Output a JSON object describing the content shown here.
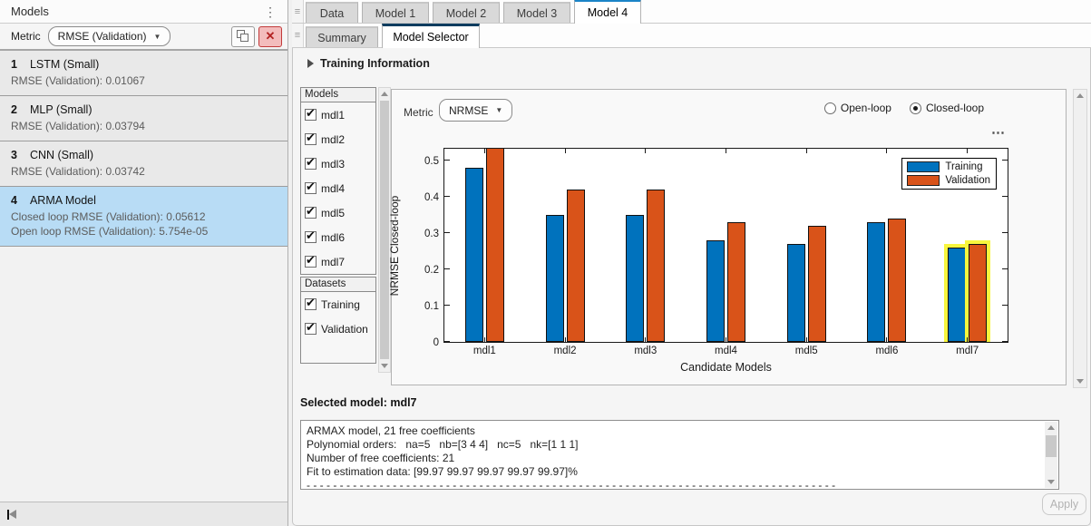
{
  "left_panel": {
    "title": "Models",
    "metric_label": "Metric",
    "metric_value": "RMSE (Validation)",
    "models": [
      {
        "index": "1",
        "name": "LSTM (Small)",
        "lines": [
          "RMSE (Validation): 0.01067"
        ],
        "selected": false
      },
      {
        "index": "2",
        "name": "MLP (Small)",
        "lines": [
          "RMSE (Validation): 0.03794"
        ],
        "selected": false
      },
      {
        "index": "3",
        "name": "CNN (Small)",
        "lines": [
          "RMSE (Validation): 0.03742"
        ],
        "selected": false
      },
      {
        "index": "4",
        "name": "ARMA Model",
        "lines": [
          "Closed loop RMSE (Validation): 0.05612",
          "Open loop RMSE (Validation): 5.754e-05"
        ],
        "selected": true
      }
    ]
  },
  "tabs": {
    "doc_tabs": [
      "Data",
      "Model 1",
      "Model 2",
      "Model 3",
      "Model 4"
    ],
    "active_doc_tab": "Model 4",
    "sub_tabs": [
      "Summary",
      "Model Selector"
    ],
    "active_sub_tab": "Model Selector"
  },
  "model_selector": {
    "training_information_label": "Training Information",
    "models_header": "Models",
    "model_checkboxes": [
      {
        "label": "mdl1",
        "checked": true
      },
      {
        "label": "mdl2",
        "checked": true
      },
      {
        "label": "mdl3",
        "checked": true
      },
      {
        "label": "mdl4",
        "checked": true
      },
      {
        "label": "mdl5",
        "checked": true
      },
      {
        "label": "mdl6",
        "checked": true
      },
      {
        "label": "mdl7",
        "checked": true
      }
    ],
    "datasets_header": "Datasets",
    "dataset_checkboxes": [
      {
        "label": "Training",
        "checked": true
      },
      {
        "label": "Validation",
        "checked": true
      }
    ],
    "metric_label": "Metric",
    "metric_value": "NRMSE",
    "radio_options": [
      {
        "label": "Open-loop",
        "selected": false
      },
      {
        "label": "Closed-loop",
        "selected": true
      }
    ],
    "selected_model_text": "Selected model: mdl7",
    "details_lines": [
      "ARMAX model, 21 free coefficients",
      "Polynomial orders:   na=5   nb=[3 4 4]   nc=5   nk=[1 1 1]",
      "Number of free coefficients: 21",
      "Fit to estimation data: [99.97 99.97 99.97 99.97 99.97]%",
      "- - - - - - - - - - - - - - - - - - - - - - - - - - - - - - - - - - - - - - - - - - - - - - - - - - - - - - - - - - - - - - - - - - - - - - - - - - - - - - - -"
    ],
    "apply_label": "Apply"
  },
  "chart_data": {
    "type": "bar",
    "categories": [
      "mdl1",
      "mdl2",
      "mdl3",
      "mdl4",
      "mdl5",
      "mdl6",
      "mdl7"
    ],
    "series": [
      {
        "name": "Training",
        "color": "#0072BD",
        "values": [
          0.48,
          0.35,
          0.35,
          0.28,
          0.27,
          0.33,
          0.26
        ]
      },
      {
        "name": "Validation",
        "color": "#D95319",
        "values": [
          0.55,
          0.42,
          0.42,
          0.33,
          0.32,
          0.34,
          0.27
        ]
      }
    ],
    "title": "",
    "xlabel": "Candidate Models",
    "ylabel": "NRMSE Closed-loop",
    "ylim": [
      0,
      0.533
    ],
    "ytick_values": [
      0,
      0.1,
      0.2,
      0.3,
      0.4,
      0.5
    ],
    "ytick_labels": [
      "0",
      "0.1",
      "0.2",
      "0.3",
      "0.4",
      "0.5"
    ],
    "grid": false,
    "legend_position": "top-right",
    "highlighted_category": "mdl7",
    "highlight_color": "#f8f63e",
    "note": "mdl1 Validation bar is clipped at the top of the axes"
  },
  "colors": {
    "selection_blue": "#b8dcf5",
    "doc_tab_accent": "#1b84c7",
    "sub_tab_accent": "#0d3c5f"
  }
}
